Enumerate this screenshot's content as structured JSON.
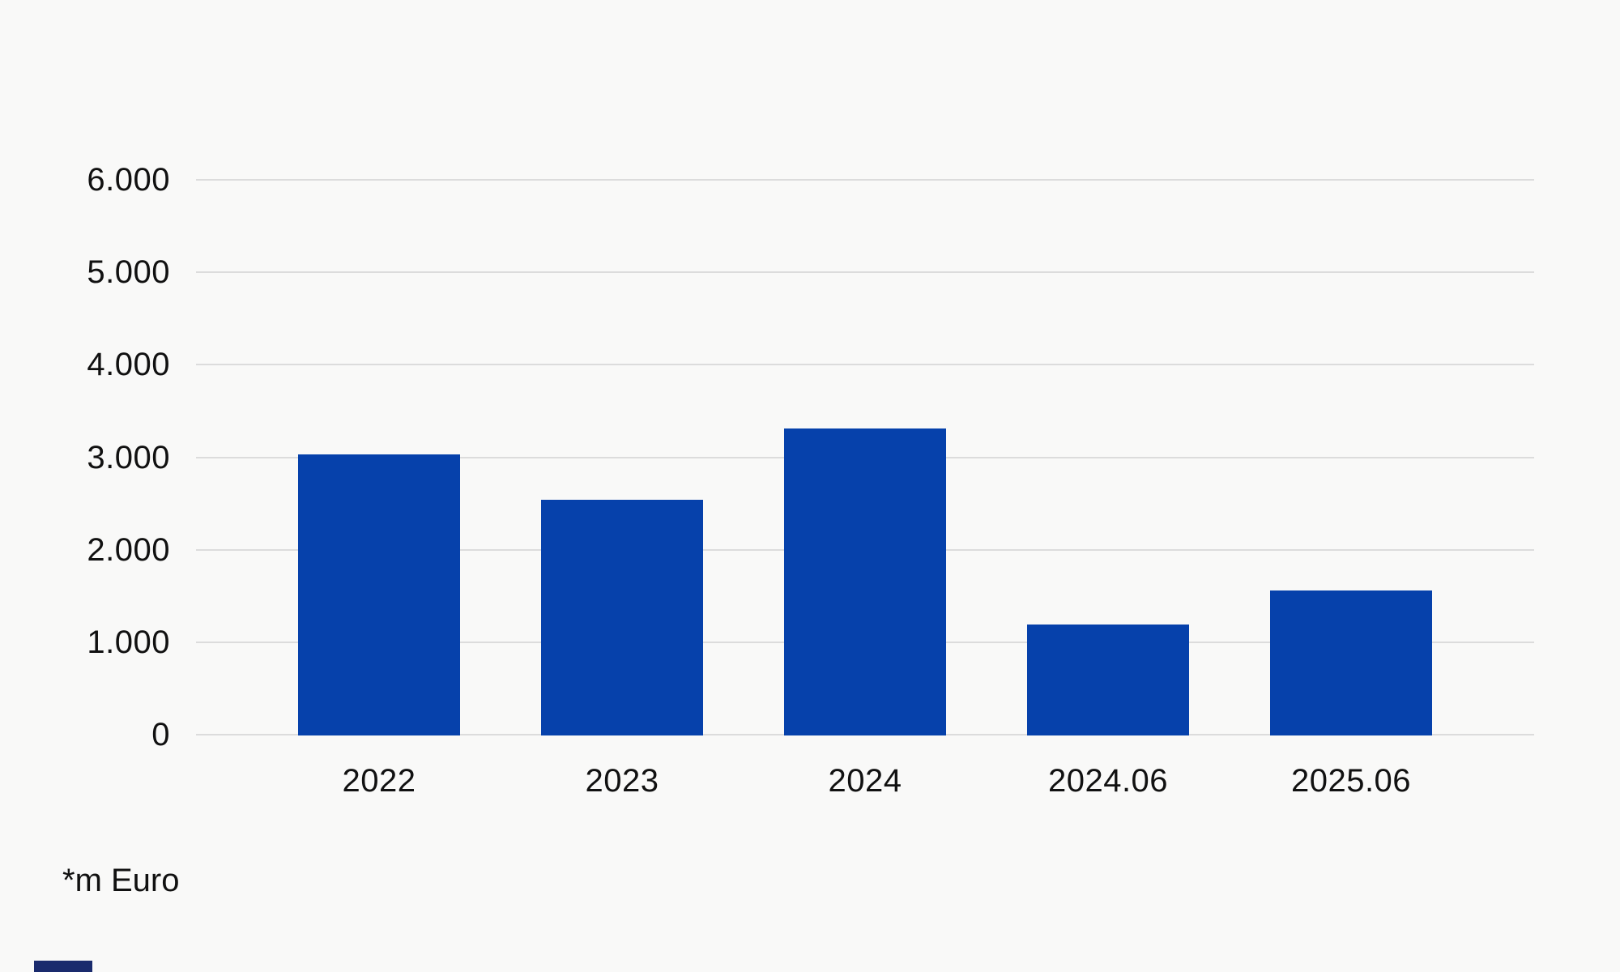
{
  "chart_data": {
    "type": "bar",
    "title": "",
    "xlabel": "",
    "ylabel": "",
    "unit_note": "*m Euro",
    "categories": [
      "2022",
      "2023",
      "2024",
      "2024.06",
      "2025.06"
    ],
    "values": [
      3040,
      2550,
      3320,
      1200,
      1570
    ],
    "ylim": [
      0,
      6000
    ],
    "ytick_interval": 1000,
    "ytick_labels": [
      "0",
      "1.000",
      "2.000",
      "3.000",
      "4.000",
      "5.000",
      "6.000"
    ],
    "grid": true,
    "legend": false,
    "colors": {
      "bar": "#0641ab",
      "background": "#f9f9f8",
      "gridline": "#dcdcdc",
      "text": "#111111",
      "corner_logo": "#1a2b6d"
    }
  }
}
